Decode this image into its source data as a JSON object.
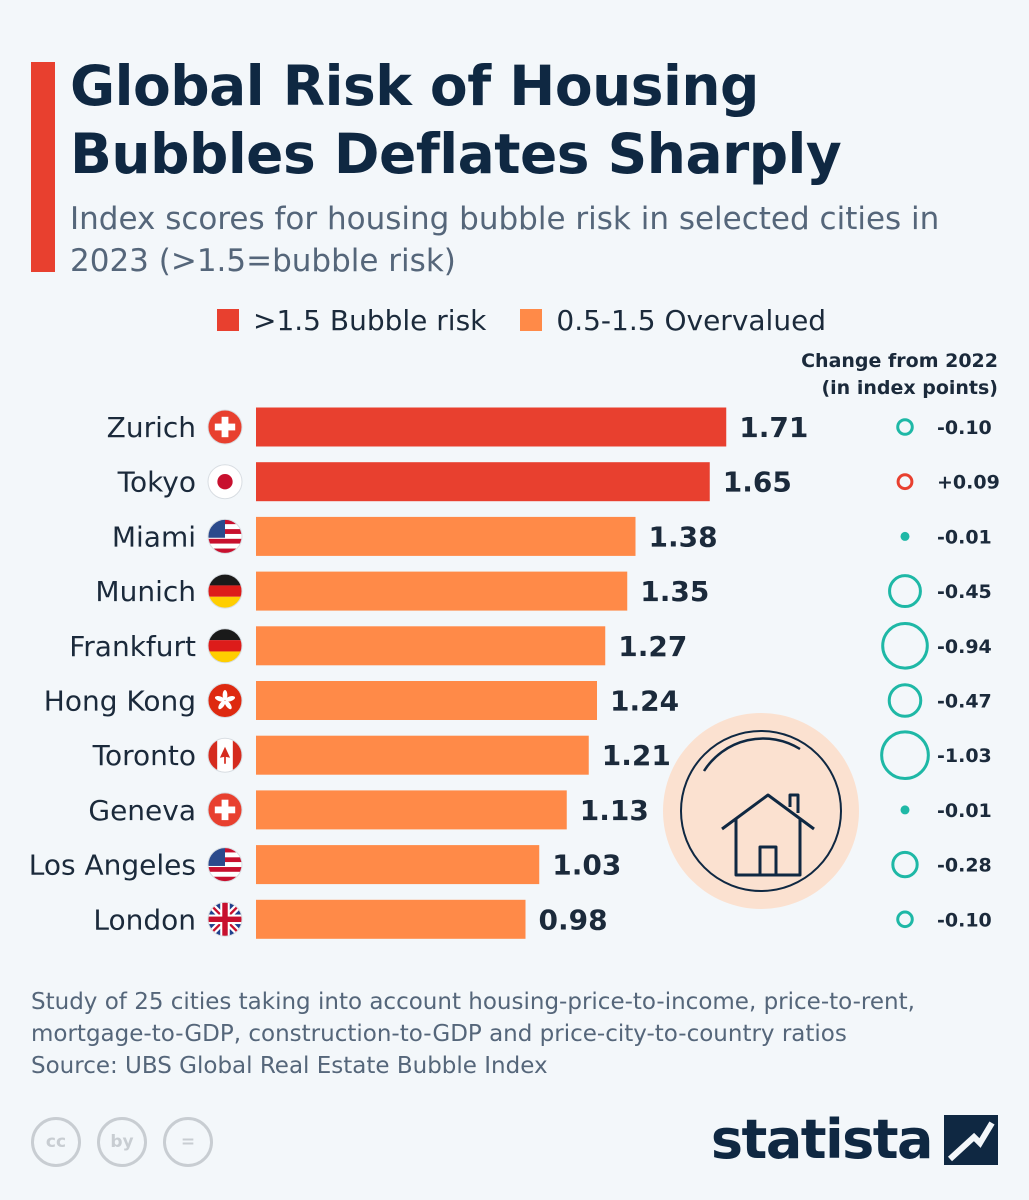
{
  "header": {
    "title": "Global Risk of Housing Bubbles Deflates Sharply",
    "subtitle": "Index scores for housing bubble risk in selected cities in 2023 (>1.5=bubble risk)"
  },
  "legend": {
    "items": [
      {
        "label": ">1.5 Bubble risk",
        "color": "#e8402f"
      },
      {
        "label": "0.5-1.5 Overvalued",
        "color": "#ff8a48"
      }
    ]
  },
  "change_header": {
    "line1": "Change from 2022",
    "line2": "(in index points)"
  },
  "colors": {
    "bubble_risk": "#e8402f",
    "overvalued": "#ff8a48",
    "decrease_circle": "#1eb8a6",
    "increase_circle": "#e8402f",
    "house_bg": "#fbe1d0",
    "house_line": "#0f2842"
  },
  "chart_data": {
    "type": "bar",
    "orientation": "horizontal",
    "categories": [
      "Zurich",
      "Tokyo",
      "Miami",
      "Munich",
      "Frankfurt",
      "Hong Kong",
      "Toronto",
      "Geneva",
      "Los Angeles",
      "London"
    ],
    "flags": [
      "switzerland-flag-icon",
      "japan-flag-icon",
      "usa-flag-icon",
      "germany-flag-icon",
      "germany-flag-icon",
      "hong-kong-flag-icon",
      "canada-flag-icon",
      "switzerland-flag-icon",
      "usa-flag-icon",
      "uk-flag-icon"
    ],
    "values": [
      1.71,
      1.65,
      1.38,
      1.35,
      1.27,
      1.24,
      1.21,
      1.13,
      1.03,
      0.98
    ],
    "value_labels": [
      "1.71",
      "1.65",
      "1.38",
      "1.35",
      "1.27",
      "1.24",
      "1.21",
      "1.13",
      "1.03",
      "0.98"
    ],
    "categories_risk": [
      "bubble",
      "bubble",
      "overvalued",
      "overvalued",
      "overvalued",
      "overvalued",
      "overvalued",
      "overvalued",
      "overvalued",
      "overvalued"
    ],
    "change_values": [
      -0.1,
      0.09,
      -0.01,
      -0.45,
      -0.94,
      -0.47,
      -1.03,
      -0.01,
      -0.28,
      -0.1
    ],
    "change_labels": [
      "-0.10",
      "+0.09",
      "-0.01",
      "-0.45",
      "-0.94",
      "-0.47",
      "-1.03",
      "-0.01",
      "-0.28",
      "-0.10"
    ],
    "xlim": [
      0,
      1.8
    ]
  },
  "footer": {
    "note": "Study of 25 cities taking into account housing-price-to-income, price-to-rent, mortgage-to-GDP, construction-to-GDP and price-city-to-country ratios",
    "source": "Source: UBS Global Real Estate Bubble Index",
    "brand": "statista",
    "cc_icons": [
      "cc",
      "by",
      "="
    ]
  }
}
